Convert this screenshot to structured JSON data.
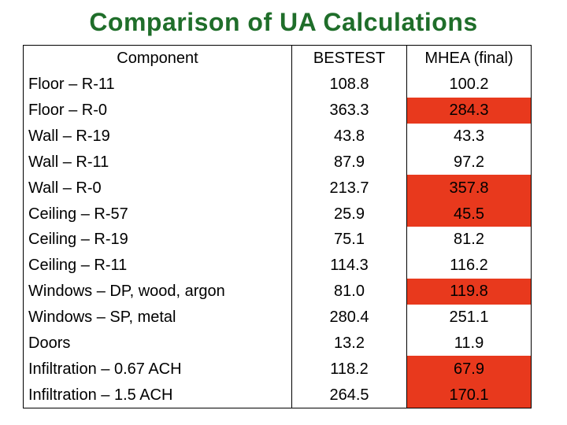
{
  "title": "Comparison of UA Calculations",
  "headers": {
    "component": "Component",
    "bestest": "BESTEST",
    "mhea": "MHEA (final)"
  },
  "highlight_color": "#e8391d",
  "rows": [
    {
      "component": "Floor – R-11",
      "bestest": "108.8",
      "mhea": "100.2",
      "highlight": false
    },
    {
      "component": "Floor – R-0",
      "bestest": "363.3",
      "mhea": "284.3",
      "highlight": true
    },
    {
      "component": "Wall – R-19",
      "bestest": "43.8",
      "mhea": "43.3",
      "highlight": false
    },
    {
      "component": "Wall – R-11",
      "bestest": "87.9",
      "mhea": "97.2",
      "highlight": false
    },
    {
      "component": "Wall – R-0",
      "bestest": "213.7",
      "mhea": "357.8",
      "highlight": true
    },
    {
      "component": "Ceiling – R-57",
      "bestest": "25.9",
      "mhea": "45.5",
      "highlight": true
    },
    {
      "component": "Ceiling – R-19",
      "bestest": "75.1",
      "mhea": "81.2",
      "highlight": false
    },
    {
      "component": "Ceiling – R-11",
      "bestest": "114.3",
      "mhea": "116.2",
      "highlight": false
    },
    {
      "component": "Windows – DP, wood, argon",
      "bestest": "81.0",
      "mhea": "119.8",
      "highlight": true
    },
    {
      "component": "Windows – SP, metal",
      "bestest": "280.4",
      "mhea": "251.1",
      "highlight": false
    },
    {
      "component": "Doors",
      "bestest": "13.2",
      "mhea": "11.9",
      "highlight": false
    },
    {
      "component": "Infiltration – 0.67 ACH",
      "bestest": "118.2",
      "mhea": "67.9",
      "highlight": true
    },
    {
      "component": "Infiltration – 1.5 ACH",
      "bestest": "264.5",
      "mhea": "170.1",
      "highlight": true
    }
  ]
}
